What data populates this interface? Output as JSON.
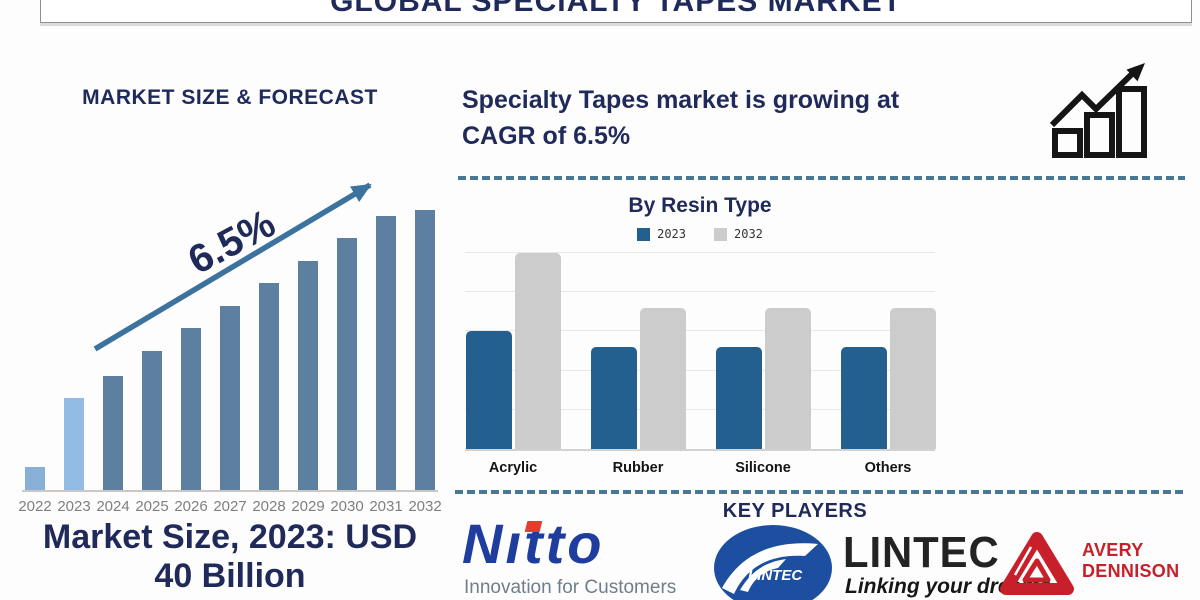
{
  "banner": {
    "title": "GLOBAL SPECIALTY TAPES MARKET"
  },
  "left_panel": {
    "title": "MARKET SIZE & FORECAST",
    "growth_label": "6.5%",
    "caption_line1": "Market Size, 2023: USD",
    "caption_line2": "40 Billion"
  },
  "right_panel": {
    "headline_line1": "Specialty Tapes market is growing at",
    "headline_line2": "CAGR of 6.5%",
    "key_players": {
      "title": "KEY PLAYERS",
      "players": [
        {
          "name": "Nitto",
          "tagline": "Innovation for Customers"
        },
        {
          "name": "LINTEC",
          "emblem_text": "LINTEC",
          "tagline": "Linking your dreams"
        },
        {
          "line1": "AVERY",
          "line2": "DENNISON"
        }
      ]
    }
  },
  "colors": {
    "navy_text": "#1F2A5A",
    "steel_bar": "#5D7FA0",
    "light_bar_2022": "#87AFD8",
    "light_bar_2023": "#92BCE4",
    "trend_arrow": "#3B729E",
    "resin_2023_blue": "#24608F",
    "resin_2032_gray": "#CCCCCC",
    "year_label_gray": "#7F7F7F",
    "dashed_divider": "#477997",
    "nitto_blue": "#1F3D9E",
    "nitto_red": "#E33E2B",
    "tagline_gray": "#6F7E8C",
    "lintec_blue": "#1D4FA1",
    "avery_red": "#C8202A",
    "icon_black": "#151515"
  },
  "chart_data": [
    {
      "type": "bar",
      "title": "MARKET SIZE & FORECAST",
      "categories": [
        "2022",
        "2023",
        "2024",
        "2025",
        "2026",
        "2027",
        "2028",
        "2029",
        "2030",
        "2031",
        "2032"
      ],
      "values": [
        8.5,
        33,
        41,
        50,
        58,
        66,
        74,
        82,
        90,
        98,
        100
      ],
      "units": "relative bar height, % of 2032 bar (illustrative — no value axis shown)",
      "annotation": "6.5% growth arrow rising left-to-right",
      "stated_fact": "Market Size, 2023: USD 40 Billion",
      "bar_colors": [
        "#87AFD8",
        "#92BCE4",
        "#5D7FA0",
        "#5D7FA0",
        "#5D7FA0",
        "#5D7FA0",
        "#5D7FA0",
        "#5D7FA0",
        "#5D7FA0",
        "#5D7FA0",
        "#5D7FA0"
      ],
      "xlabel": "",
      "ylabel": "",
      "grid": false,
      "legend_position": "none"
    },
    {
      "type": "bar",
      "title": "By Resin Type",
      "categories": [
        "Acrylic",
        "Rubber",
        "Silicone",
        "Others"
      ],
      "series": [
        {
          "name": "2023",
          "color": "#24608F",
          "values": [
            30,
            26,
            26,
            26
          ]
        },
        {
          "name": "2032",
          "color": "#CCCCCC",
          "values": [
            50,
            36,
            36,
            36
          ]
        }
      ],
      "units": "relative units, estimated from unlabeled gridlines (spacing = 10)",
      "ylim": [
        0,
        52
      ],
      "xlabel": "",
      "ylabel": "",
      "grid": true,
      "legend_position": "top"
    }
  ]
}
